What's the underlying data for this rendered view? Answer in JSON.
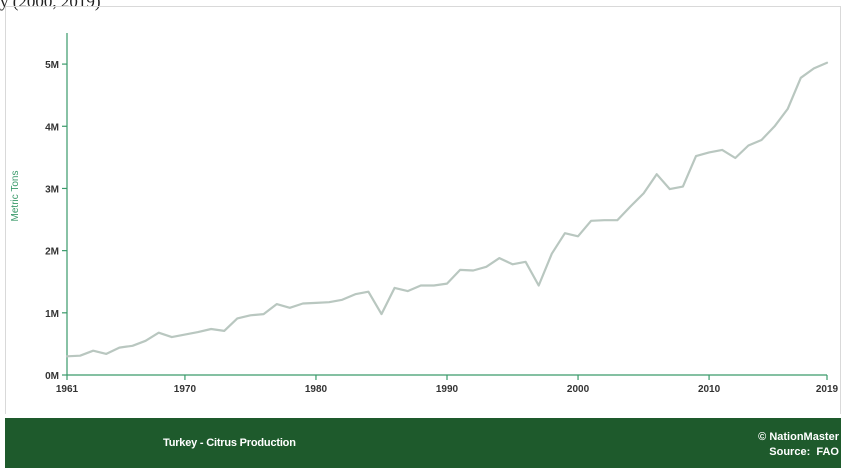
{
  "page": {
    "top_caption": "y (2000, 2019)"
  },
  "footer": {
    "title": "Turkey - Citrus Production",
    "copyright": "© NationMaster",
    "source_label": "Source:",
    "source_value": "FAO"
  },
  "colors": {
    "line": "#b9c7c0",
    "axis": "#3a9a6a",
    "footer_bg": "#1e5a2c"
  },
  "chart_data": {
    "type": "line",
    "title": "Turkey - Citrus Production",
    "xlabel": "",
    "ylabel": "Metric Tons",
    "xlim": [
      1961,
      2019
    ],
    "ylim": [
      0,
      5500000
    ],
    "x_ticks": [
      1961,
      1970,
      1980,
      1990,
      2000,
      2010,
      2019
    ],
    "y_ticks": [
      {
        "value": 0,
        "label": "0M"
      },
      {
        "value": 1000000,
        "label": "1M"
      },
      {
        "value": 2000000,
        "label": "2M"
      },
      {
        "value": 3000000,
        "label": "3M"
      },
      {
        "value": 4000000,
        "label": "4M"
      },
      {
        "value": 5000000,
        "label": "5M"
      }
    ],
    "grid": false,
    "series": [
      {
        "x": [
          1961,
          1962,
          1963,
          1964,
          1965,
          1966,
          1967,
          1968,
          1969,
          1970,
          1971,
          1972,
          1973,
          1974,
          1975,
          1976,
          1977,
          1978,
          1979,
          1980,
          1981,
          1982,
          1983,
          1984,
          1985,
          1986,
          1987,
          1988,
          1989,
          1990,
          1991,
          1992,
          1993,
          1994,
          1995,
          1996,
          1997,
          1998,
          1999,
          2000,
          2001,
          2002,
          2003,
          2004,
          2005,
          2006,
          2007,
          2008,
          2009,
          2010,
          2011,
          2012,
          2013,
          2014,
          2015,
          2016,
          2017,
          2018,
          2019
        ],
        "values": [
          300000,
          310000,
          390000,
          340000,
          440000,
          470000,
          550000,
          680000,
          610000,
          650000,
          690000,
          740000,
          710000,
          910000,
          960000,
          980000,
          1140000,
          1080000,
          1150000,
          1160000,
          1170000,
          1210000,
          1300000,
          1340000,
          980000,
          1400000,
          1350000,
          1440000,
          1440000,
          1470000,
          1690000,
          1680000,
          1740000,
          1880000,
          1780000,
          1820000,
          1440000,
          1950000,
          2280000,
          2230000,
          2480000,
          2490000,
          2490000,
          2710000,
          2920000,
          3230000,
          2990000,
          3030000,
          3520000,
          3580000,
          3620000,
          3490000,
          3690000,
          3780000,
          4000000,
          4280000,
          4780000,
          4930000,
          5020000
        ]
      }
    ]
  }
}
